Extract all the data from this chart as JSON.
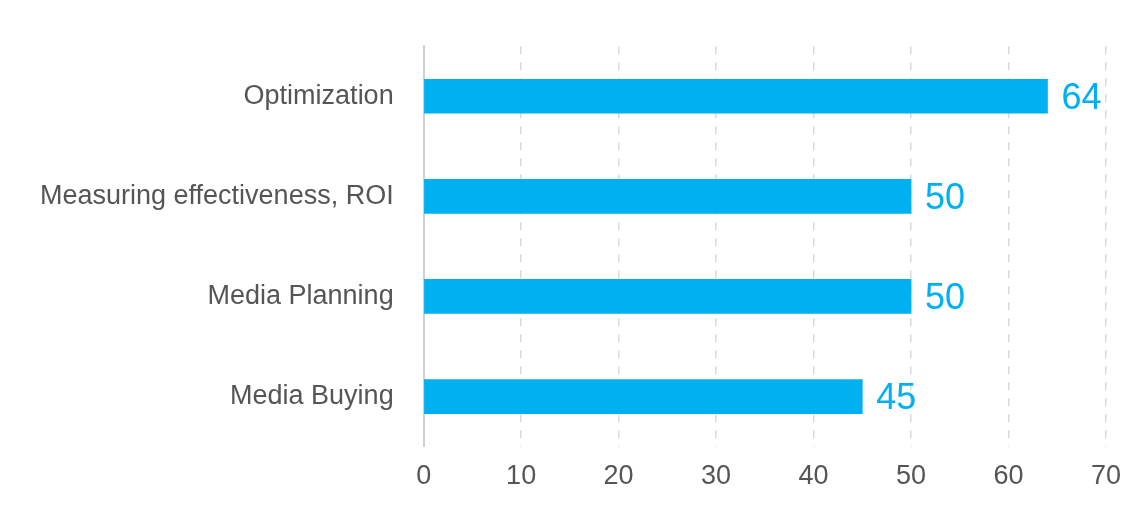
{
  "chart_data": {
    "type": "bar",
    "orientation": "horizontal",
    "categories": [
      "Optimization",
      "Measuring effectiveness, ROI",
      "Media Planning",
      "Media Buying"
    ],
    "values": [
      64,
      50,
      50,
      45
    ],
    "color": "#00b0f0",
    "xlim": [
      0,
      70
    ],
    "xticks": [
      0,
      10,
      20,
      30,
      40,
      50,
      60,
      70
    ],
    "grid": "x",
    "data_labels": true,
    "legend": false
  }
}
